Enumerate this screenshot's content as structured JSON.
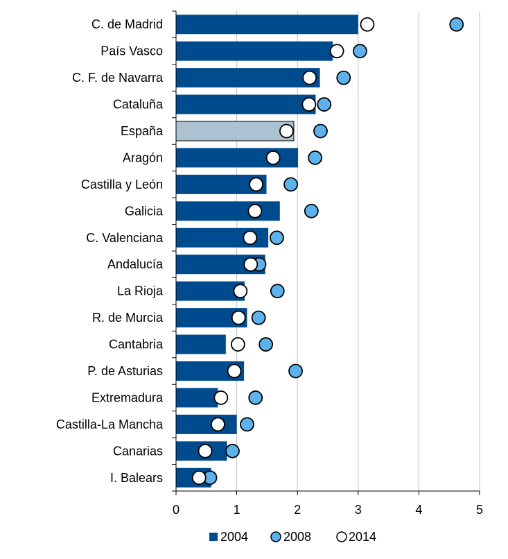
{
  "chart_data": {
    "type": "bar",
    "orientation": "horizontal",
    "categories": [
      "C. de Madrid",
      "País Vasco",
      "C. F. de Navarra",
      "Cataluña",
      "España",
      "Aragón",
      "Castilla y León",
      "Galicia",
      "C. Valenciana",
      "Andalucía",
      "La Rioja",
      "R. de Murcia",
      "Cantabria",
      "P. de Asturias",
      "Extremadura",
      "Castilla-La Mancha",
      "Canarias",
      "I. Balears"
    ],
    "series": [
      {
        "name": "2004",
        "mark": "bar",
        "values": [
          3.0,
          2.58,
          2.37,
          2.3,
          1.94,
          2.01,
          1.49,
          1.71,
          1.52,
          1.47,
          1.13,
          1.17,
          0.82,
          1.12,
          0.69,
          1.0,
          0.84,
          0.58
        ]
      },
      {
        "name": "2008",
        "mark": "circle",
        "values": [
          4.62,
          3.03,
          2.76,
          2.44,
          2.38,
          2.29,
          1.89,
          2.23,
          1.66,
          1.37,
          1.67,
          1.36,
          1.48,
          1.97,
          1.31,
          1.17,
          0.93,
          0.56
        ]
      },
      {
        "name": "2014",
        "mark": "circle",
        "values": [
          3.15,
          2.65,
          2.2,
          2.19,
          1.82,
          1.6,
          1.32,
          1.3,
          1.22,
          1.23,
          1.06,
          1.03,
          1.02,
          0.96,
          0.74,
          0.69,
          0.48,
          0.38
        ]
      }
    ],
    "highlight_category": "España",
    "xlim": [
      0,
      5
    ],
    "xticks": [
      "0",
      "1",
      "2",
      "3",
      "4",
      "5"
    ],
    "grid": "vertical",
    "legend": "bottom",
    "title": "",
    "xlabel": "",
    "ylabel": ""
  },
  "colors": {
    "bar_2004": "#004b8d",
    "bar_highlight": "#adc2d1",
    "circle_2008": "#5eb2ec",
    "circle_2014": "#ffffff",
    "grid": "#bfbfbf",
    "axis": "#000000"
  }
}
